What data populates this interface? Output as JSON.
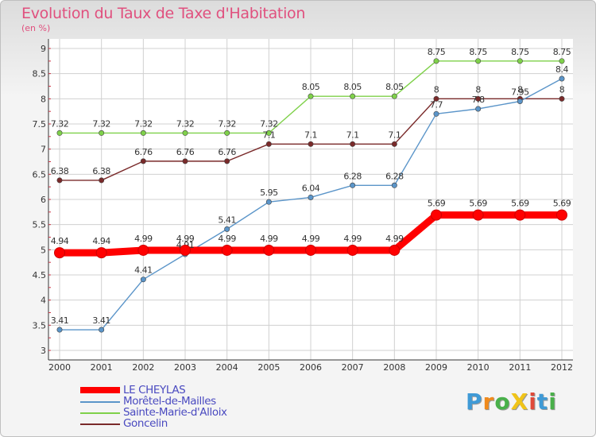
{
  "title": "Evolution du Taux de Taxe d'Habitation",
  "unit_label": "(en %)",
  "brand": {
    "text": "ProXiti",
    "letters": [
      "P",
      "r",
      "o",
      "X",
      "i",
      "t",
      "i"
    ],
    "colors": [
      "#3f9ad6",
      "#f08a1c",
      "#49b04a",
      "#f0c419",
      "#e04a3a",
      "#3f9ad6",
      "#49b04a"
    ]
  },
  "chart_data": {
    "type": "line",
    "title": "Evolution du Taux de Taxe d'Habitation",
    "ylabel": "(en %)",
    "xlabel": "",
    "x": [
      "2000",
      "2001",
      "2002",
      "2003",
      "2004",
      "2005",
      "2006",
      "2007",
      "2008",
      "2009",
      "2010",
      "2011",
      "2012"
    ],
    "ylim": [
      3,
      9
    ],
    "yticks": [
      "3",
      "3.5",
      "4",
      "4.5",
      "5",
      "5.5",
      "6",
      "6.5",
      "7",
      "7.5",
      "8",
      "8.5",
      "9"
    ],
    "grid": true,
    "legend_position": "bottom-left",
    "series": [
      {
        "name": "LE CHEYLAS",
        "color": "#ff0000",
        "emphasis": true,
        "values": [
          4.94,
          4.94,
          4.99,
          4.99,
          4.99,
          4.99,
          4.99,
          4.99,
          4.99,
          5.69,
          5.69,
          5.69,
          5.69
        ],
        "labels": [
          "4.94",
          "4.94",
          "4.99",
          "4.99",
          "4.99",
          "4.99",
          "4.99",
          "4.99",
          "4.99",
          "5.69",
          "5.69",
          "5.69",
          "5.69"
        ]
      },
      {
        "name": "Morêtel-de-Mailles",
        "color": "#5b95c9",
        "emphasis": false,
        "values": [
          3.41,
          3.41,
          4.41,
          4.91,
          5.41,
          5.95,
          6.04,
          6.28,
          6.28,
          7.7,
          7.8,
          7.95,
          8.4
        ],
        "labels": [
          "3.41",
          "3.41",
          "4.41",
          "4.91",
          "5.41",
          "5.95",
          "6.04",
          "6.28",
          "6.28",
          "7.7",
          "7.8",
          "7.95",
          "8.4"
        ]
      },
      {
        "name": "Sainte-Marie-d'Alloix",
        "color": "#7fd14a",
        "emphasis": false,
        "values": [
          7.32,
          7.32,
          7.32,
          7.32,
          7.32,
          7.32,
          8.05,
          8.05,
          8.05,
          8.75,
          8.75,
          8.75,
          8.75
        ],
        "labels": [
          "7.32",
          "7.32",
          "7.32",
          "7.32",
          "7.32",
          "7.32",
          "8.05",
          "8.05",
          "8.05",
          "8.75",
          "8.75",
          "8.75",
          "8.75"
        ]
      },
      {
        "name": "Goncelin",
        "color": "#7a2a2a",
        "emphasis": false,
        "values": [
          6.38,
          6.38,
          6.76,
          6.76,
          6.76,
          7.1,
          7.1,
          7.1,
          7.1,
          8,
          8,
          8,
          8
        ],
        "labels": [
          "6.38",
          "6.38",
          "6.76",
          "6.76",
          "6.76",
          "7.1",
          "7.1",
          "7.1",
          "7.1",
          "8",
          "8",
          "8",
          "8"
        ]
      }
    ]
  }
}
